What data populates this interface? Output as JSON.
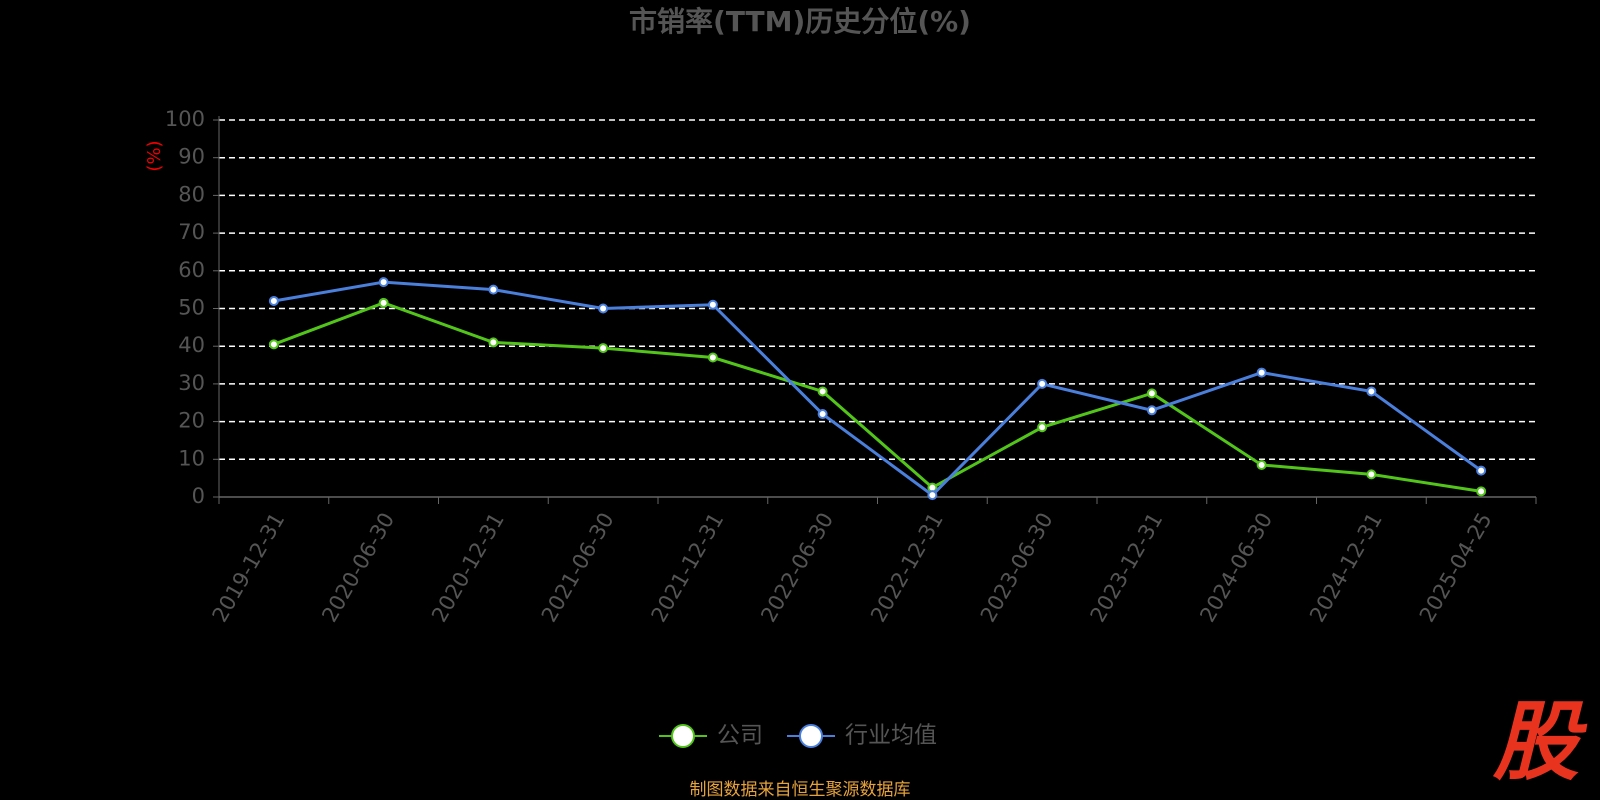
{
  "chart_data": {
    "type": "line",
    "title": "市销率(TTM)历史分位(%)",
    "y_label": "(%)",
    "categories": [
      "2019-12-31",
      "2020-06-30",
      "2020-12-31",
      "2021-06-30",
      "2021-12-31",
      "2022-06-30",
      "2022-12-31",
      "2023-06-30",
      "2023-12-31",
      "2024-06-30",
      "2024-12-31",
      "2025-04-25"
    ],
    "series": [
      {
        "name": "公司",
        "color": "#52c41a",
        "values": [
          40.5,
          51.5,
          41,
          39.5,
          37,
          28,
          2.5,
          18.5,
          27.5,
          8.5,
          6,
          1.5
        ]
      },
      {
        "name": "行业均值",
        "color": "#4a7fdc",
        "values": [
          52,
          57,
          55,
          50,
          51,
          22,
          0.5,
          30,
          23,
          33,
          28,
          7
        ]
      }
    ],
    "ylim": [
      0,
      100
    ],
    "yticks": [
      0,
      10,
      20,
      30,
      40,
      50,
      60,
      70,
      80,
      90,
      100
    ],
    "grid": true,
    "source": "制图数据来自恒生聚源数据库",
    "watermark": "股"
  }
}
